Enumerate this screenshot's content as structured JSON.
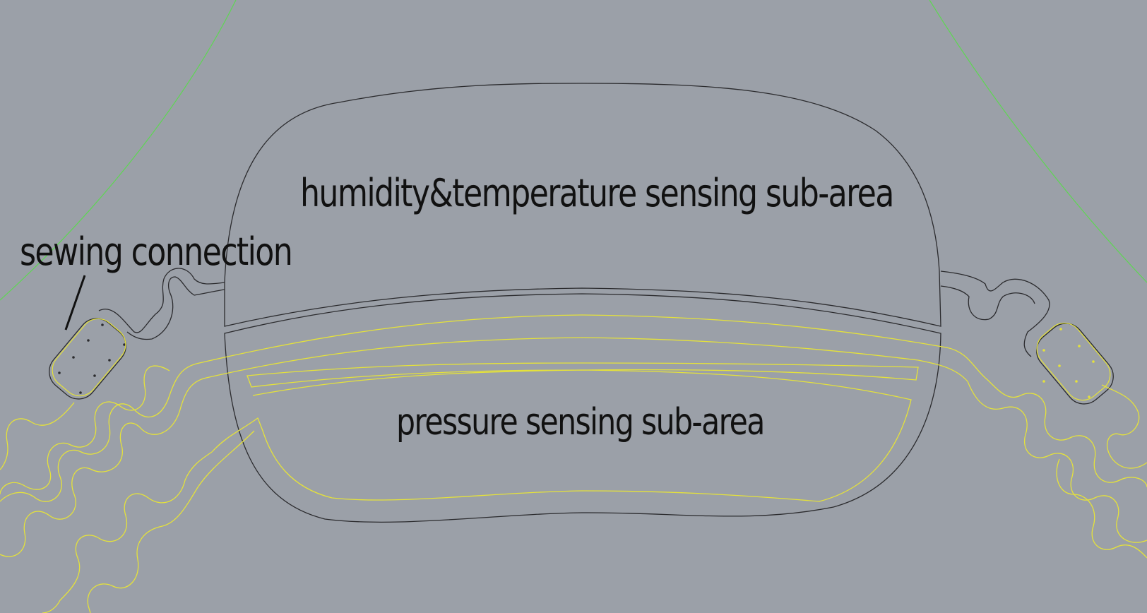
{
  "labels": {
    "humidity_temperature": "humidity&temperature sensing sub-area",
    "pressure": "pressure sensing sub-area",
    "sewing": "sewing connection"
  },
  "colors": {
    "background": "#9ba0a8",
    "outline": "#2b2b2e",
    "trace": "#e5e23a",
    "guide": "#5ed653"
  }
}
